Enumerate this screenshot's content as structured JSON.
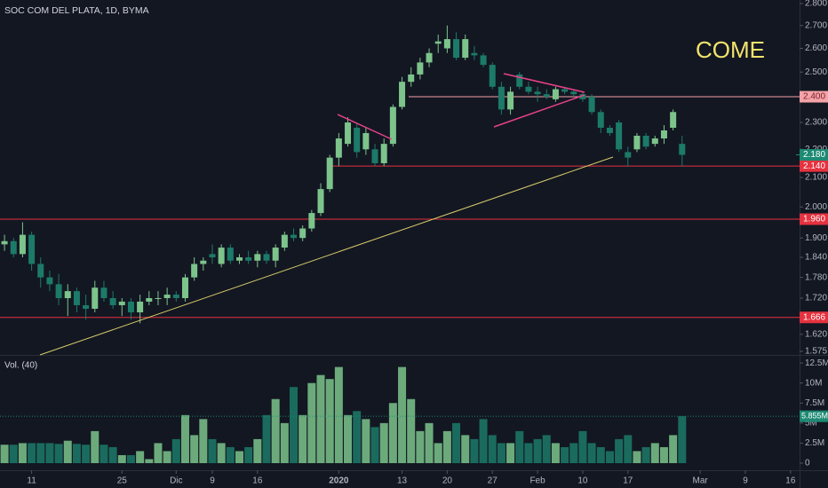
{
  "chart_data": {
    "type": "candlestick",
    "title": "SOC COM DEL PLATA, 1D, BYMA",
    "annotation": "COME",
    "log_scale": true,
    "up_color": "#7cc48b",
    "down_color": "#1c7a69",
    "xlim": [
      -0.5,
      88
    ],
    "xticks": [
      {
        "value": 3,
        "label": "11"
      },
      {
        "value": 13,
        "label": "25"
      },
      {
        "value": 19,
        "label": "Dic"
      },
      {
        "value": 23,
        "label": "9"
      },
      {
        "value": 28,
        "label": "16"
      },
      {
        "value": 37,
        "label": "2020"
      },
      {
        "value": 44,
        "label": "13"
      },
      {
        "value": 49,
        "label": "20"
      },
      {
        "value": 54,
        "label": "27"
      },
      {
        "value": 59,
        "label": "Feb"
      },
      {
        "value": 64,
        "label": "10"
      },
      {
        "value": 69,
        "label": "17"
      },
      {
        "value": 77,
        "label": "Mar"
      },
      {
        "value": 82,
        "label": "9"
      },
      {
        "value": 87,
        "label": "16"
      }
    ],
    "ylim": [
      1.575,
      2.8
    ],
    "yticks": [
      {
        "value": 2.8,
        "label": "2.800"
      },
      {
        "value": 2.7,
        "label": "2.700"
      },
      {
        "value": 2.6,
        "label": "2.600"
      },
      {
        "value": 2.5,
        "label": "2.500"
      },
      {
        "value": 2.3,
        "label": "2.300"
      },
      {
        "value": 2.2,
        "label": "2.200"
      },
      {
        "value": 2.1,
        "label": "2.100"
      },
      {
        "value": 2.0,
        "label": "2.000"
      },
      {
        "value": 1.9,
        "label": "1.900"
      },
      {
        "value": 1.84,
        "label": "1.840"
      },
      {
        "value": 1.78,
        "label": "1.780"
      },
      {
        "value": 1.72,
        "label": "1.720"
      },
      {
        "value": 1.62,
        "label": "1.620"
      },
      {
        "value": 1.575,
        "label": "1.575"
      }
    ],
    "open": [
      1.88,
      1.89,
      1.85,
      1.91,
      1.82,
      1.78,
      1.76,
      1.72,
      1.74,
      1.7,
      1.69,
      1.75,
      1.72,
      1.7,
      1.71,
      1.68,
      1.71,
      1.72,
      1.72,
      1.73,
      1.72,
      1.78,
      1.82,
      1.85,
      1.82,
      1.87,
      1.83,
      1.84,
      1.83,
      1.85,
      1.83,
      1.87,
      1.91,
      1.9,
      1.93,
      1.98,
      2.06,
      2.17,
      2.22,
      2.28,
      2.2,
      2.2,
      2.15,
      2.22,
      2.36,
      2.46,
      2.49,
      2.54,
      2.62,
      2.6,
      2.64,
      2.56,
      2.58,
      2.57,
      2.53,
      2.44,
      2.35,
      2.49,
      2.44,
      2.42,
      2.41,
      2.39,
      2.43,
      2.42,
      2.41,
      2.4,
      2.34,
      2.28,
      2.3,
      2.19,
      2.2,
      2.25,
      2.22,
      2.24,
      2.28,
      2.22
    ],
    "high": [
      1.91,
      1.9,
      1.95,
      1.92,
      1.84,
      1.8,
      1.79,
      1.76,
      1.75,
      1.73,
      1.77,
      1.77,
      1.74,
      1.72,
      1.72,
      1.73,
      1.74,
      1.74,
      1.75,
      1.74,
      1.79,
      1.84,
      1.84,
      1.88,
      1.88,
      1.88,
      1.85,
      1.86,
      1.86,
      1.86,
      1.88,
      1.92,
      1.93,
      1.94,
      1.99,
      2.08,
      2.18,
      2.26,
      2.32,
      2.3,
      2.28,
      2.22,
      2.24,
      2.37,
      2.48,
      2.52,
      2.56,
      2.6,
      2.66,
      2.7,
      2.67,
      2.66,
      2.61,
      2.58,
      2.54,
      2.46,
      2.44,
      2.5,
      2.46,
      2.44,
      2.43,
      2.44,
      2.44,
      2.43,
      2.42,
      2.41,
      2.35,
      2.29,
      2.31,
      2.21,
      2.26,
      2.26,
      2.25,
      2.29,
      2.35,
      2.25
    ],
    "low": [
      1.86,
      1.84,
      1.84,
      1.8,
      1.75,
      1.74,
      1.7,
      1.67,
      1.68,
      1.66,
      1.68,
      1.71,
      1.69,
      1.67,
      1.66,
      1.65,
      1.7,
      1.7,
      1.7,
      1.71,
      1.71,
      1.77,
      1.8,
      1.82,
      1.81,
      1.82,
      1.82,
      1.82,
      1.81,
      1.82,
      1.81,
      1.86,
      1.89,
      1.89,
      1.92,
      1.97,
      2.05,
      2.14,
      2.21,
      2.17,
      2.18,
      2.14,
      2.14,
      2.21,
      2.35,
      2.44,
      2.47,
      2.52,
      2.58,
      2.58,
      2.55,
      2.55,
      2.55,
      2.52,
      2.43,
      2.33,
      2.33,
      2.43,
      2.41,
      2.38,
      2.39,
      2.38,
      2.41,
      2.4,
      2.38,
      2.33,
      2.26,
      2.25,
      2.19,
      2.14,
      2.19,
      2.2,
      2.21,
      2.22,
      2.27,
      2.14
    ],
    "close": [
      1.89,
      1.85,
      1.91,
      1.82,
      1.78,
      1.76,
      1.72,
      1.74,
      1.7,
      1.69,
      1.75,
      1.72,
      1.7,
      1.71,
      1.68,
      1.71,
      1.72,
      1.72,
      1.73,
      1.72,
      1.78,
      1.82,
      1.83,
      1.84,
      1.87,
      1.83,
      1.84,
      1.83,
      1.85,
      1.83,
      1.87,
      1.91,
      1.9,
      1.93,
      1.98,
      2.06,
      2.17,
      2.24,
      2.3,
      2.19,
      2.26,
      2.15,
      2.22,
      2.36,
      2.46,
      2.49,
      2.54,
      2.58,
      2.63,
      2.64,
      2.56,
      2.64,
      2.57,
      2.53,
      2.44,
      2.35,
      2.42,
      2.44,
      2.42,
      2.41,
      2.4,
      2.43,
      2.42,
      2.41,
      2.39,
      2.34,
      2.28,
      2.26,
      2.2,
      2.17,
      2.25,
      2.21,
      2.24,
      2.27,
      2.34,
      2.18
    ],
    "levels": [
      {
        "value": 2.4,
        "label": "2.400",
        "color": "#f4a3a8"
      },
      {
        "value": 2.14,
        "label": "2.140",
        "color": "#e5323f"
      },
      {
        "value": 1.96,
        "label": "1.960",
        "color": "#e5323f"
      },
      {
        "value": 1.666,
        "label": "1.666",
        "color": "#e5323f"
      }
    ],
    "last_price": {
      "value": 2.18,
      "label": "2.180",
      "color": "#1e8a73"
    },
    "volume": {
      "title": "Vol. (40)",
      "values": [
        2.3,
        2.3,
        2.5,
        2.5,
        2.5,
        2.5,
        2.4,
        2.8,
        2.4,
        2.3,
        4.0,
        2.3,
        2.0,
        1.0,
        1.0,
        1.5,
        0.5,
        2.5,
        1.5,
        3.0,
        6.0,
        3.5,
        5.5,
        3.0,
        2.5,
        2.0,
        1.5,
        2.0,
        3.0,
        6.0,
        8.0,
        5.0,
        9.5,
        6.0,
        10.0,
        11.0,
        10.5,
        12.0,
        6.0,
        6.5,
        5.5,
        4.5,
        5.0,
        7.5,
        12.0,
        8.0,
        4.0,
        5.0,
        2.5,
        4.0,
        5.0,
        3.5,
        3.0,
        5.5,
        3.5,
        2.5,
        2.5,
        4.0,
        2.5,
        3.0,
        3.5,
        2.5,
        2.0,
        2.5,
        4.0,
        2.5,
        2.0,
        1.5,
        3.0,
        3.5,
        1.5,
        2.0,
        2.5,
        2.0,
        3.5,
        5.855
      ],
      "ylim": [
        0,
        13.4
      ],
      "yticks": [
        {
          "value": 12.5,
          "label": "12.5M"
        },
        {
          "value": 10,
          "label": "10M"
        },
        {
          "value": 7.5,
          "label": "7.5M"
        },
        {
          "value": 5,
          "label": "5M"
        },
        {
          "value": 2.5,
          "label": "2.5M"
        },
        0
      ],
      "last_label": {
        "value": 5.855,
        "label": "5.855M",
        "color": "#1e8a73"
      }
    }
  }
}
